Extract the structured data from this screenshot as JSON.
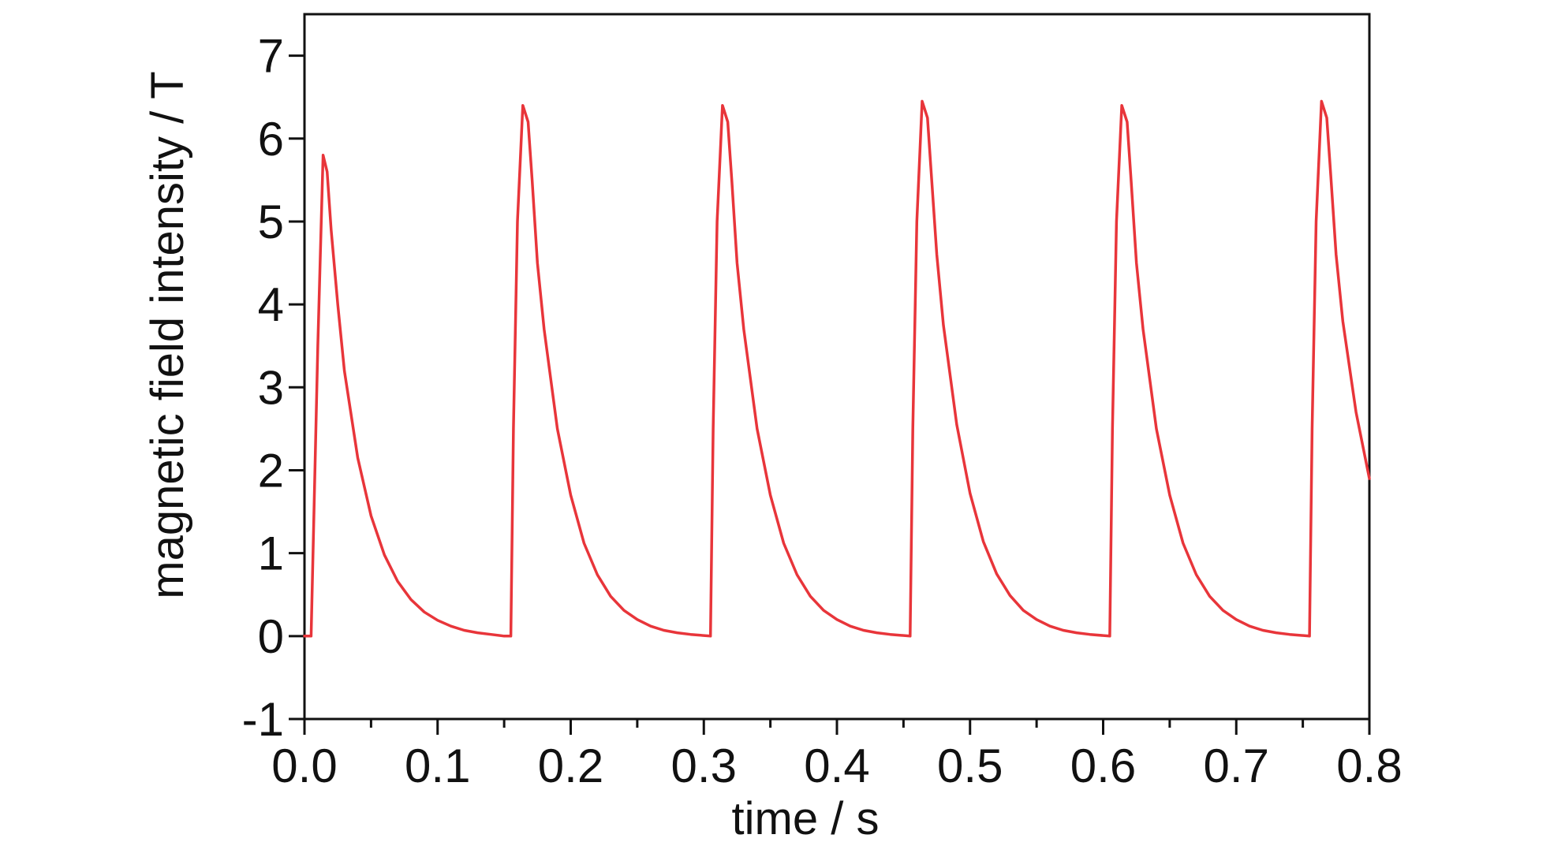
{
  "chart_data": {
    "type": "line",
    "title": "",
    "xlabel": "time / s",
    "ylabel": "magnetic field intensity / T",
    "xlim": [
      0.0,
      0.8
    ],
    "ylim": [
      -1,
      7.5
    ],
    "x_ticks": [
      "0.0",
      "0.1",
      "0.2",
      "0.3",
      "0.4",
      "0.5",
      "0.6",
      "0.7",
      "0.8"
    ],
    "y_ticks": [
      "-1",
      "0",
      "1",
      "2",
      "3",
      "4",
      "5",
      "6",
      "7"
    ],
    "x_tick_values": [
      0.0,
      0.1,
      0.2,
      0.3,
      0.4,
      0.5,
      0.6,
      0.7,
      0.8
    ],
    "y_tick_values": [
      -1,
      0,
      1,
      2,
      3,
      4,
      5,
      6,
      7
    ],
    "x_minor_step": 0.05,
    "grid": false,
    "line_color": "#e8353a",
    "series": [
      {
        "x": [
          0.0,
          0.005,
          0.01,
          0.014,
          0.017,
          0.02,
          0.025,
          0.03,
          0.04,
          0.05,
          0.06,
          0.07,
          0.08,
          0.09,
          0.1,
          0.11,
          0.12,
          0.13,
          0.14,
          0.15,
          0.155,
          0.157,
          0.16,
          0.164,
          0.168,
          0.171,
          0.175,
          0.18,
          0.19,
          0.2,
          0.21,
          0.22,
          0.23,
          0.24,
          0.25,
          0.26,
          0.27,
          0.28,
          0.29,
          0.305,
          0.307,
          0.31,
          0.314,
          0.318,
          0.321,
          0.325,
          0.33,
          0.34,
          0.35,
          0.36,
          0.37,
          0.38,
          0.39,
          0.4,
          0.41,
          0.42,
          0.43,
          0.44,
          0.455,
          0.457,
          0.46,
          0.464,
          0.468,
          0.471,
          0.475,
          0.48,
          0.49,
          0.5,
          0.51,
          0.52,
          0.53,
          0.54,
          0.55,
          0.56,
          0.57,
          0.58,
          0.59,
          0.605,
          0.607,
          0.61,
          0.614,
          0.618,
          0.621,
          0.625,
          0.63,
          0.64,
          0.65,
          0.66,
          0.67,
          0.68,
          0.69,
          0.7,
          0.71,
          0.72,
          0.73,
          0.74,
          0.755,
          0.757,
          0.76,
          0.764,
          0.768,
          0.771,
          0.775,
          0.78,
          0.79,
          0.8
        ],
        "y": [
          0.0,
          0.0,
          3.5,
          5.8,
          5.6,
          4.9,
          4.0,
          3.2,
          2.15,
          1.45,
          0.98,
          0.66,
          0.44,
          0.29,
          0.19,
          0.12,
          0.07,
          0.04,
          0.02,
          0.0,
          0.0,
          2.5,
          5.0,
          6.4,
          6.2,
          5.5,
          4.5,
          3.7,
          2.5,
          1.7,
          1.12,
          0.74,
          0.48,
          0.31,
          0.2,
          0.12,
          0.07,
          0.04,
          0.02,
          0.0,
          2.5,
          5.0,
          6.4,
          6.2,
          5.5,
          4.5,
          3.7,
          2.5,
          1.7,
          1.12,
          0.74,
          0.48,
          0.31,
          0.2,
          0.12,
          0.07,
          0.04,
          0.02,
          0.0,
          2.5,
          5.0,
          6.45,
          6.25,
          5.55,
          4.6,
          3.75,
          2.55,
          1.72,
          1.14,
          0.75,
          0.49,
          0.31,
          0.2,
          0.12,
          0.07,
          0.04,
          0.02,
          0.0,
          2.5,
          5.0,
          6.4,
          6.2,
          5.5,
          4.5,
          3.7,
          2.5,
          1.7,
          1.12,
          0.74,
          0.48,
          0.31,
          0.2,
          0.12,
          0.07,
          0.04,
          0.02,
          0.0,
          2.5,
          5.0,
          6.45,
          6.25,
          5.55,
          4.6,
          3.8,
          2.7,
          1.9
        ]
      }
    ]
  }
}
